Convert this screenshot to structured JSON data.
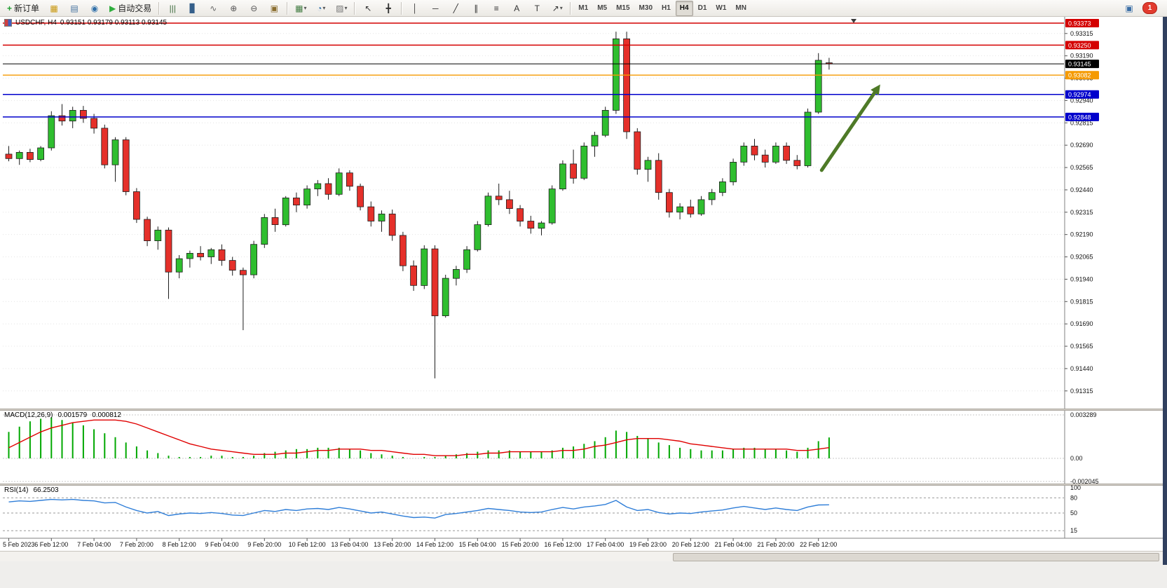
{
  "toolbar": {
    "new_order_label": "新订单",
    "autotrading_label": "自动交易",
    "new_order_icon": {
      "glyph": "+",
      "color": "#1f9d2f"
    },
    "autotrading_icon": {
      "glyph": "▶",
      "color": "#2fae3e"
    },
    "icon_groups": {
      "windows": [
        {
          "name": "charts-grid-icon",
          "glyph": "▦",
          "color": "#c8960c"
        },
        {
          "name": "market-watch-icon",
          "glyph": "▤",
          "color": "#44719e"
        },
        {
          "name": "history-center-icon",
          "glyph": "◉",
          "color": "#2f6fa8"
        }
      ],
      "chart_modes": [
        {
          "name": "bar-chart-icon",
          "glyph": "|||",
          "color": "#3d6b3d"
        },
        {
          "name": "candlestick-chart-icon",
          "glyph": "▊",
          "color": "#355f8a"
        },
        {
          "name": "line-chart-icon",
          "glyph": "∿",
          "color": "#666666"
        },
        {
          "name": "zoom-in-icon",
          "glyph": "⊕",
          "color": "#555555"
        },
        {
          "name": "zoom-out-icon",
          "glyph": "⊖",
          "color": "#555555"
        },
        {
          "name": "tile-windows-icon",
          "glyph": "▣",
          "color": "#8a6d2f"
        }
      ],
      "chart_tools": [
        {
          "name": "new-chart-icon",
          "glyph": "▦",
          "color": "#3f7a3f",
          "dropdown": true
        },
        {
          "name": "period-icon",
          "glyph": "◔",
          "color": "#2f6fa8",
          "dropdown": true
        },
        {
          "name": "template-icon",
          "glyph": "▨",
          "color": "#777777",
          "dropdown": true
        }
      ],
      "cursor_tools": [
        {
          "name": "cursor-icon",
          "glyph": "↖",
          "color": "#333333"
        },
        {
          "name": "crosshair-icon",
          "glyph": "╋",
          "color": "#333333"
        }
      ],
      "draw_tools": [
        {
          "name": "vertical-line-icon",
          "glyph": "│",
          "color": "#333333"
        },
        {
          "name": "horizontal-line-icon",
          "glyph": "─",
          "color": "#333333"
        },
        {
          "name": "trendline-icon",
          "glyph": "╱",
          "color": "#333333"
        },
        {
          "name": "channel-icon",
          "glyph": "∥",
          "color": "#333333"
        },
        {
          "name": "fibonacci-icon",
          "glyph": "≡",
          "color": "#333333"
        },
        {
          "name": "text-icon",
          "glyph": "A",
          "color": "#333333"
        },
        {
          "name": "label-icon",
          "glyph": "T",
          "color": "#333333"
        },
        {
          "name": "arrows-icon",
          "glyph": "↗",
          "color": "#333333",
          "dropdown": true
        }
      ]
    },
    "timeframes": {
      "items": [
        "M1",
        "M5",
        "M15",
        "M30",
        "H1",
        "H4",
        "D1",
        "W1",
        "MN"
      ],
      "active": "H4"
    },
    "notifications": {
      "icon_glyph": "▣",
      "icon_color": "#3a6ea5",
      "count": "1"
    }
  },
  "chart_data": {
    "type": "candlestick",
    "title": "USDCHF, H4",
    "ohlc_text": "0.93151 0.93179 0.93113 0.93145",
    "price_axis_ticks": [
      0.93315,
      0.9319,
      0.93065,
      0.9294,
      0.92815,
      0.9269,
      0.92565,
      0.9244,
      0.92315,
      0.9219,
      0.92065,
      0.9194,
      0.91815,
      0.9169,
      0.91565,
      0.9144,
      0.91315
    ],
    "hlines": [
      {
        "price": 0.93373,
        "label": "0.93373",
        "color": "#d40000",
        "kind": "resistance"
      },
      {
        "price": 0.9325,
        "label": "0.93250",
        "color": "#d40000",
        "kind": "resistance"
      },
      {
        "price": 0.93145,
        "label": "0.93145",
        "color": "#000000",
        "kind": "current-price"
      },
      {
        "price": 0.93082,
        "label": "0.93082",
        "color": "#f59a00",
        "kind": "level"
      },
      {
        "price": 0.92974,
        "label": "0.92974",
        "color": "#0000cc",
        "kind": "support"
      },
      {
        "price": 0.92848,
        "label": "0.92848",
        "color": "#0000cc",
        "kind": "support"
      }
    ],
    "candles": [
      [
        0.9264,
        0.92685,
        0.926,
        0.92615
      ],
      [
        0.92615,
        0.9266,
        0.9258,
        0.9265
      ],
      [
        0.9265,
        0.9267,
        0.92595,
        0.9261
      ],
      [
        0.9261,
        0.92685,
        0.926,
        0.92675
      ],
      [
        0.92675,
        0.9288,
        0.9266,
        0.92855
      ],
      [
        0.92855,
        0.9292,
        0.928,
        0.92825
      ],
      [
        0.92825,
        0.92905,
        0.92785,
        0.92885
      ],
      [
        0.92885,
        0.9291,
        0.92815,
        0.9284
      ],
      [
        0.9284,
        0.92865,
        0.92755,
        0.92785
      ],
      [
        0.92785,
        0.92805,
        0.9256,
        0.9258
      ],
      [
        0.9258,
        0.92735,
        0.92485,
        0.9272
      ],
      [
        0.9272,
        0.92735,
        0.9241,
        0.9243
      ],
      [
        0.9243,
        0.9245,
        0.92255,
        0.92275
      ],
      [
        0.92275,
        0.9229,
        0.92125,
        0.92155
      ],
      [
        0.92155,
        0.92235,
        0.92105,
        0.92215
      ],
      [
        0.92215,
        0.9223,
        0.9183,
        0.9198
      ],
      [
        0.9198,
        0.92075,
        0.91945,
        0.92055
      ],
      [
        0.92055,
        0.921,
        0.92005,
        0.92085
      ],
      [
        0.92085,
        0.92125,
        0.92045,
        0.92065
      ],
      [
        0.92065,
        0.92115,
        0.92025,
        0.92105
      ],
      [
        0.92105,
        0.92135,
        0.92015,
        0.92045
      ],
      [
        0.92045,
        0.92065,
        0.9196,
        0.9199
      ],
      [
        0.9199,
        0.92005,
        0.91655,
        0.91965
      ],
      [
        0.91965,
        0.92155,
        0.91945,
        0.92135
      ],
      [
        0.92135,
        0.92305,
        0.92115,
        0.92285
      ],
      [
        0.92285,
        0.92335,
        0.92205,
        0.92245
      ],
      [
        0.92245,
        0.92405,
        0.92235,
        0.92395
      ],
      [
        0.92395,
        0.92425,
        0.92315,
        0.92355
      ],
      [
        0.92355,
        0.92465,
        0.92335,
        0.92445
      ],
      [
        0.92445,
        0.92495,
        0.92405,
        0.92475
      ],
      [
        0.92475,
        0.92505,
        0.92385,
        0.92415
      ],
      [
        0.92415,
        0.9256,
        0.92405,
        0.92535
      ],
      [
        0.92535,
        0.9255,
        0.92435,
        0.9246
      ],
      [
        0.9246,
        0.92475,
        0.92325,
        0.92345
      ],
      [
        0.92345,
        0.92375,
        0.92235,
        0.92265
      ],
      [
        0.92265,
        0.92325,
        0.92205,
        0.92305
      ],
      [
        0.92305,
        0.9233,
        0.92155,
        0.92185
      ],
      [
        0.92185,
        0.92205,
        0.91985,
        0.92015
      ],
      [
        0.92015,
        0.92045,
        0.91875,
        0.91905
      ],
      [
        0.91905,
        0.9213,
        0.91885,
        0.9211
      ],
      [
        0.9211,
        0.9213,
        0.91385,
        0.91735
      ],
      [
        0.91735,
        0.91965,
        0.91725,
        0.91945
      ],
      [
        0.91945,
        0.92015,
        0.91905,
        0.91995
      ],
      [
        0.91995,
        0.92125,
        0.91975,
        0.92105
      ],
      [
        0.92105,
        0.92265,
        0.92095,
        0.92245
      ],
      [
        0.92245,
        0.92425,
        0.92235,
        0.92405
      ],
      [
        0.92405,
        0.92475,
        0.92355,
        0.92385
      ],
      [
        0.92385,
        0.92435,
        0.92305,
        0.92335
      ],
      [
        0.92335,
        0.92355,
        0.92235,
        0.92265
      ],
      [
        0.92265,
        0.92295,
        0.92195,
        0.92225
      ],
      [
        0.92225,
        0.92265,
        0.92185,
        0.92255
      ],
      [
        0.92255,
        0.92465,
        0.92245,
        0.92445
      ],
      [
        0.92445,
        0.92605,
        0.92435,
        0.92585
      ],
      [
        0.92585,
        0.92665,
        0.92475,
        0.92505
      ],
      [
        0.92505,
        0.92705,
        0.92495,
        0.92685
      ],
      [
        0.92685,
        0.92765,
        0.92625,
        0.92745
      ],
      [
        0.92745,
        0.92905,
        0.92735,
        0.92885
      ],
      [
        0.92885,
        0.93325,
        0.92865,
        0.93285
      ],
      [
        0.93285,
        0.93325,
        0.92725,
        0.92765
      ],
      [
        0.92765,
        0.92785,
        0.92525,
        0.92555
      ],
      [
        0.92555,
        0.92625,
        0.92485,
        0.92605
      ],
      [
        0.92605,
        0.92645,
        0.92385,
        0.92425
      ],
      [
        0.92425,
        0.92445,
        0.92285,
        0.92315
      ],
      [
        0.92315,
        0.92365,
        0.92275,
        0.92345
      ],
      [
        0.92345,
        0.92385,
        0.92285,
        0.92305
      ],
      [
        0.92305,
        0.92405,
        0.92295,
        0.92385
      ],
      [
        0.92385,
        0.92445,
        0.92355,
        0.92425
      ],
      [
        0.92425,
        0.92505,
        0.92405,
        0.92485
      ],
      [
        0.92485,
        0.92615,
        0.92465,
        0.92595
      ],
      [
        0.92595,
        0.92705,
        0.92575,
        0.92685
      ],
      [
        0.92685,
        0.92725,
        0.92605,
        0.92635
      ],
      [
        0.92635,
        0.92665,
        0.92565,
        0.92595
      ],
      [
        0.92595,
        0.92705,
        0.92585,
        0.92685
      ],
      [
        0.92685,
        0.92705,
        0.92585,
        0.92605
      ],
      [
        0.92605,
        0.92635,
        0.92555,
        0.92575
      ],
      [
        0.92575,
        0.92895,
        0.92565,
        0.92875
      ],
      [
        0.92875,
        0.93205,
        0.92865,
        0.93165
      ],
      [
        0.93151,
        0.93179,
        0.93113,
        0.93145
      ]
    ],
    "x_labels": [
      {
        "t": "5 Feb 2023",
        "i": 0
      },
      {
        "t": "6 Feb 12:00",
        "i": 4
      },
      {
        "t": "7 Feb 04:00",
        "i": 8
      },
      {
        "t": "7 Feb 20:00",
        "i": 12
      },
      {
        "t": "8 Feb 12:00",
        "i": 16
      },
      {
        "t": "9 Feb 04:00",
        "i": 20
      },
      {
        "t": "9 Feb 20:00",
        "i": 24
      },
      {
        "t": "10 Feb 12:00",
        "i": 28
      },
      {
        "t": "13 Feb 04:00",
        "i": 32
      },
      {
        "t": "13 Feb 20:00",
        "i": 36
      },
      {
        "t": "14 Feb 12:00",
        "i": 40
      },
      {
        "t": "15 Feb 04:00",
        "i": 44
      },
      {
        "t": "15 Feb 20:00",
        "i": 48
      },
      {
        "t": "16 Feb 12:00",
        "i": 52
      },
      {
        "t": "17 Feb 04:00",
        "i": 56
      },
      {
        "t": "19 Feb 23:00",
        "i": 60
      },
      {
        "t": "20 Feb 12:00",
        "i": 64
      },
      {
        "t": "21 Feb 04:00",
        "i": 68
      },
      {
        "t": "21 Feb 20:00",
        "i": 72
      },
      {
        "t": "22 Feb 12:00",
        "i": 76
      }
    ],
    "arrow": {
      "from_index": 76.3,
      "from_price": 0.9255,
      "to_index": 81.8,
      "to_price": 0.9303,
      "color": "#4e7a27"
    },
    "colors": {
      "bull": "#2fbe2f",
      "bear": "#e5302a",
      "outline": "#1d1d1d",
      "grid": "#e4e4e4",
      "macd_hist": "#00a800",
      "macd_signal": "#e00000",
      "rsi_line": "#2f7ed8"
    },
    "indicators": {
      "macd": {
        "label": "MACD(12,26,9)",
        "value_main": "0.001579",
        "value_signal": "0.000812",
        "axis": {
          "max": "0.003289",
          "zero": "0.00",
          "min": "-0.002045"
        },
        "max": 0.003289,
        "min": -0.002045,
        "main": [
          0.002,
          0.0024,
          0.0028,
          0.003,
          0.0031,
          0.0029,
          0.0027,
          0.0025,
          0.0022,
          0.0019,
          0.0016,
          0.0012,
          0.0009,
          0.0006,
          0.0004,
          0.0002,
          0.0001,
          0.0001,
          0.0001,
          0.0002,
          0.0002,
          0.0001,
          0.0001,
          0.0002,
          0.0004,
          0.0005,
          0.0006,
          0.0007,
          0.0007,
          0.0008,
          0.0008,
          0.0008,
          0.0007,
          0.0006,
          0.0004,
          0.0003,
          0.0002,
          0.0001,
          0.0,
          0.0001,
          0.0001,
          0.0002,
          0.0003,
          0.0004,
          0.0005,
          0.0006,
          0.0006,
          0.0006,
          0.0005,
          0.0005,
          0.0005,
          0.0006,
          0.0008,
          0.0009,
          0.0011,
          0.0013,
          0.0016,
          0.0021,
          0.002,
          0.0017,
          0.0015,
          0.0012,
          0.001,
          0.0008,
          0.0007,
          0.0006,
          0.0006,
          0.0006,
          0.0007,
          0.0008,
          0.0008,
          0.0007,
          0.0007,
          0.0006,
          0.0005,
          0.0008,
          0.0013,
          0.001579
        ],
        "signal": [
          0.0008,
          0.0012,
          0.0016,
          0.002,
          0.0023,
          0.0025,
          0.0027,
          0.0028,
          0.0029,
          0.0029,
          0.0029,
          0.0028,
          0.0026,
          0.0023,
          0.002,
          0.0017,
          0.0014,
          0.0011,
          0.0009,
          0.0007,
          0.0006,
          0.0005,
          0.0004,
          0.0003,
          0.0003,
          0.0003,
          0.0004,
          0.0004,
          0.0005,
          0.0006,
          0.0006,
          0.0007,
          0.0007,
          0.0007,
          0.0006,
          0.0006,
          0.0005,
          0.0004,
          0.0003,
          0.0003,
          0.0002,
          0.0002,
          0.0002,
          0.0003,
          0.0003,
          0.0004,
          0.0004,
          0.0005,
          0.0005,
          0.0005,
          0.0005,
          0.0005,
          0.0006,
          0.0006,
          0.0007,
          0.0009,
          0.001,
          0.0012,
          0.0014,
          0.0015,
          0.0015,
          0.0015,
          0.0014,
          0.0013,
          0.0011,
          0.001,
          0.0009,
          0.0008,
          0.0007,
          0.0007,
          0.0007,
          0.0007,
          0.0007,
          0.0007,
          0.0006,
          0.0006,
          0.0007,
          0.000812
        ]
      },
      "rsi": {
        "label": "RSI(14)",
        "value": "66.2503",
        "levels": [
          80,
          50,
          15
        ],
        "axis_labels": [
          100,
          80,
          50,
          15
        ],
        "series": [
          72,
          74,
          73,
          75,
          77,
          76,
          77,
          75,
          74,
          70,
          71,
          62,
          55,
          50,
          53,
          45,
          48,
          50,
          49,
          51,
          49,
          46,
          45,
          50,
          55,
          53,
          57,
          55,
          58,
          59,
          57,
          61,
          58,
          54,
          50,
          52,
          48,
          44,
          41,
          42,
          40,
          47,
          49,
          52,
          55,
          59,
          57,
          55,
          52,
          51,
          52,
          57,
          61,
          58,
          62,
          64,
          67,
          75,
          62,
          55,
          57,
          51,
          48,
          50,
          49,
          52,
          54,
          56,
          60,
          63,
          60,
          57,
          60,
          57,
          55,
          62,
          66,
          66.25
        ]
      }
    }
  }
}
